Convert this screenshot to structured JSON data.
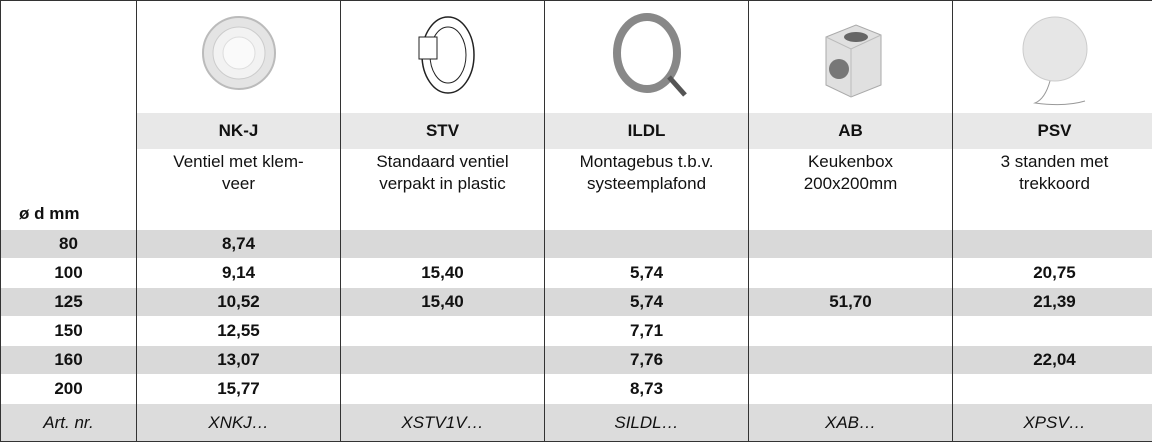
{
  "table": {
    "corner": "ø d mm",
    "columns": [
      {
        "code": "NK-J",
        "description": "Ventiel met klem-\nveer"
      },
      {
        "code": "STV",
        "description": "Standaard ventiel\nverpakt in plastic"
      },
      {
        "code": "ILDL",
        "description": "Montagebus t.b.v.\nsysteemplafond"
      },
      {
        "code": "AB",
        "description": "Keukenbox\n200x200mm"
      },
      {
        "code": "PSV",
        "description": "3 standen met\ntrekkoord"
      }
    ],
    "rows": [
      {
        "size": "80",
        "prices": [
          "8,74",
          null,
          null,
          null,
          null
        ]
      },
      {
        "size": "100",
        "prices": [
          "9,14",
          "15,40",
          "5,74",
          null,
          "20,75"
        ]
      },
      {
        "size": "125",
        "prices": [
          "10,52",
          "15,40",
          "5,74",
          "51,70",
          "21,39"
        ]
      },
      {
        "size": "150",
        "prices": [
          "12,55",
          null,
          "7,71",
          null,
          null
        ]
      },
      {
        "size": "160",
        "prices": [
          "13,07",
          null,
          "7,76",
          null,
          "22,04"
        ]
      },
      {
        "size": "200",
        "prices": [
          "15,77",
          null,
          "8,73",
          null,
          null
        ]
      }
    ],
    "footer": {
      "label": "Art. nr.",
      "codes": [
        "XNKJ…",
        "XSTV1V…",
        "SILDL…",
        "XAB…",
        "XPSV…"
      ]
    }
  }
}
